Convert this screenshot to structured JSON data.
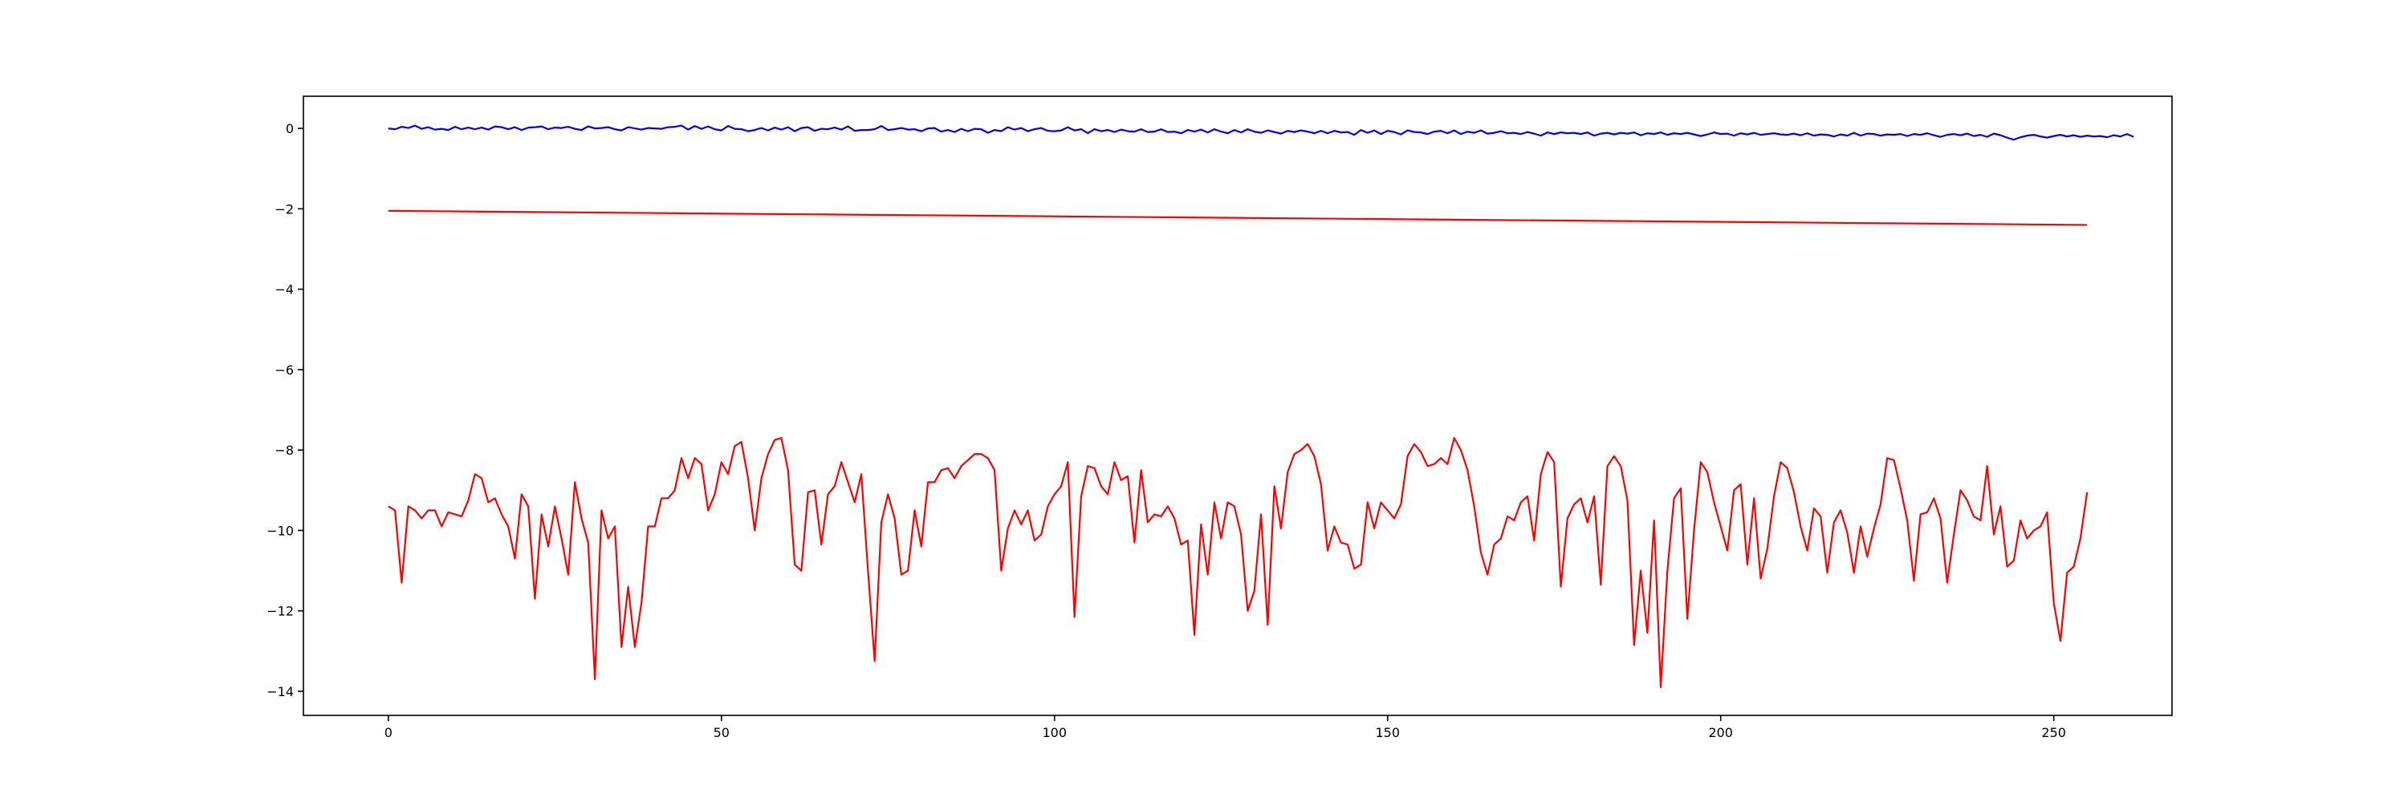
{
  "chart_data": {
    "type": "line",
    "title": "",
    "xlabel": "",
    "ylabel": "",
    "xlim": [
      -12.75,
      267.75
    ],
    "ylim": [
      -14.6,
      0.8
    ],
    "x_ticks": [
      0,
      50,
      100,
      150,
      200,
      250
    ],
    "x_tick_labels": [
      "0",
      "50",
      "100",
      "150",
      "200",
      "250"
    ],
    "y_ticks": [
      0,
      -2,
      -4,
      -6,
      -8,
      -10,
      -12,
      -14
    ],
    "y_tick_labels": [
      "0",
      "−2",
      "−4",
      "−6",
      "−8",
      "−10",
      "−12",
      "−14"
    ],
    "grid": false,
    "legend": "none",
    "series": [
      {
        "color": "#0000ff",
        "x_start": 0,
        "x_step": 1,
        "values": [
          0,
          -0.02,
          0.04,
          0.01,
          0.07,
          -0.01,
          0.03,
          -0.03,
          -0.01,
          -0.04,
          0.04,
          -0.02,
          0.02,
          -0.02,
          0.02,
          -0.03,
          0.05,
          0.03,
          -0.02,
          0.03,
          -0.04,
          0.02,
          0.03,
          0.05,
          -0.02,
          0.02,
          0.01,
          0.04,
          -0.01,
          -0.04,
          0.05,
          0,
          0.01,
          0.03,
          -0.02,
          -0.05,
          0.03,
          0,
          -0.03,
          0.01,
          0,
          -0.01,
          0.03,
          0.04,
          0.07,
          -0.03,
          0.06,
          -0.01,
          0.05,
          -0.02,
          -0.05,
          0.06,
          -0.01,
          -0.02,
          -0.07,
          -0.04,
          0.01,
          -0.05,
          0.02,
          -0.03,
          0.03,
          -0.07,
          0.01,
          0.03,
          -0.06,
          -0.01,
          -0.02,
          0.02,
          -0.03,
          0.05,
          -0.06,
          -0.04,
          -0.04,
          -0.02,
          0.06,
          -0.04,
          -0.02,
          0.01,
          -0.03,
          -0.02,
          -0.07,
          0,
          0.01,
          -0.08,
          -0.04,
          -0.09,
          -0.01,
          -0.07,
          -0.01,
          -0.02,
          -0.11,
          -0.04,
          -0.07,
          0.03,
          -0.03,
          0.01,
          -0.07,
          -0.02,
          0.01,
          -0.06,
          -0.07,
          -0.05,
          0.03,
          -0.05,
          -0.02,
          -0.12,
          -0.02,
          -0.07,
          -0.04,
          -0.09,
          -0.03,
          -0.07,
          -0.08,
          -0.02,
          -0.09,
          -0.08,
          -0.02,
          -0.09,
          -0.08,
          -0.12,
          -0.04,
          -0.08,
          -0.03,
          -0.1,
          -0.02,
          -0.08,
          -0.12,
          -0.04,
          -0.1,
          -0.02,
          -0.08,
          -0.11,
          -0.05,
          -0.09,
          -0.13,
          -0.06,
          -0.09,
          -0.05,
          -0.08,
          -0.12,
          -0.06,
          -0.12,
          -0.06,
          -0.1,
          -0.09,
          -0.16,
          -0.04,
          -0.11,
          -0.05,
          -0.14,
          -0.06,
          -0.09,
          -0.15,
          -0.05,
          -0.09,
          -0.1,
          -0.14,
          -0.08,
          -0.06,
          -0.12,
          -0.05,
          -0.14,
          -0.08,
          -0.11,
          -0.05,
          -0.13,
          -0.11,
          -0.07,
          -0.12,
          -0.11,
          -0.14,
          -0.09,
          -0.13,
          -0.18,
          -0.1,
          -0.14,
          -0.1,
          -0.12,
          -0.11,
          -0.14,
          -0.1,
          -0.18,
          -0.13,
          -0.11,
          -0.15,
          -0.11,
          -0.13,
          -0.1,
          -0.17,
          -0.12,
          -0.14,
          -0.1,
          -0.16,
          -0.12,
          -0.14,
          -0.11,
          -0.15,
          -0.19,
          -0.15,
          -0.1,
          -0.14,
          -0.13,
          -0.18,
          -0.12,
          -0.15,
          -0.11,
          -0.16,
          -0.14,
          -0.12,
          -0.15,
          -0.16,
          -0.13,
          -0.17,
          -0.12,
          -0.18,
          -0.15,
          -0.16,
          -0.2,
          -0.15,
          -0.18,
          -0.11,
          -0.18,
          -0.13,
          -0.14,
          -0.18,
          -0.15,
          -0.16,
          -0.14,
          -0.19,
          -0.14,
          -0.16,
          -0.12,
          -0.17,
          -0.21,
          -0.16,
          -0.14,
          -0.17,
          -0.13,
          -0.19,
          -0.16,
          -0.21,
          -0.13,
          -0.17,
          -0.23,
          -0.28,
          -0.22,
          -0.18,
          -0.16,
          -0.2,
          -0.23,
          -0.19,
          -0.16,
          -0.2,
          -0.17,
          -0.21,
          -0.18,
          -0.2,
          -0.19,
          -0.22,
          -0.17,
          -0.2,
          -0.14,
          -0.21
        ]
      },
      {
        "color": "#ff0000",
        "x_start": 0,
        "x_step": 1,
        "values": [
          -2.05,
          -2.4
        ]
      },
      {
        "color": "#ff0000",
        "x_start": 0,
        "x_step": 1,
        "values": [
          -9.4,
          -9.5,
          -11.3,
          -9.4,
          -9.5,
          -9.7,
          -9.5,
          -9.5,
          -9.9,
          -9.55,
          -9.6,
          -9.65,
          -9.25,
          -8.6,
          -8.7,
          -9.3,
          -9.2,
          -9.6,
          -9.9,
          -10.7,
          -9.1,
          -9.4,
          -11.7,
          -9.6,
          -10.4,
          -9.4,
          -10.2,
          -11.1,
          -8.8,
          -9.7,
          -10.3,
          -13.7,
          -9.5,
          -10.2,
          -9.9,
          -12.9,
          -11.4,
          -12.9,
          -11.8,
          -9.9,
          -9.9,
          -9.2,
          -9.2,
          -9.0,
          -8.2,
          -8.7,
          -8.2,
          -8.35,
          -9.5,
          -9.1,
          -8.3,
          -8.6,
          -7.9,
          -7.8,
          -8.7,
          -10.0,
          -8.7,
          -8.1,
          -7.75,
          -7.7,
          -8.5,
          -10.85,
          -11.0,
          -9.05,
          -9.0,
          -10.35,
          -9.1,
          -8.9,
          -8.3,
          -8.8,
          -9.3,
          -8.6,
          -11.0,
          -13.25,
          -9.8,
          -9.1,
          -9.7,
          -11.1,
          -11.0,
          -9.5,
          -10.4,
          -8.8,
          -8.8,
          -8.5,
          -8.45,
          -8.7,
          -8.4,
          -8.25,
          -8.1,
          -8.1,
          -8.2,
          -8.5,
          -11.0,
          -9.95,
          -9.5,
          -9.85,
          -9.5,
          -10.25,
          -10.1,
          -9.4,
          -9.1,
          -8.9,
          -8.3,
          -12.15,
          -9.15,
          -8.4,
          -8.45,
          -8.9,
          -9.1,
          -8.3,
          -8.75,
          -8.65,
          -10.3,
          -8.5,
          -9.8,
          -9.6,
          -9.65,
          -9.4,
          -9.7,
          -10.35,
          -10.25,
          -12.6,
          -9.85,
          -11.1,
          -9.3,
          -10.2,
          -9.3,
          -9.4,
          -10.1,
          -12.0,
          -11.5,
          -9.6,
          -12.35,
          -8.9,
          -9.95,
          -8.55,
          -8.1,
          -8.0,
          -7.85,
          -8.15,
          -8.85,
          -10.5,
          -9.9,
          -10.3,
          -10.35,
          -10.95,
          -10.85,
          -9.3,
          -9.95,
          -9.3,
          -9.5,
          -9.7,
          -9.35,
          -8.15,
          -7.85,
          -8.05,
          -8.4,
          -8.35,
          -8.2,
          -8.35,
          -7.7,
          -8.0,
          -8.5,
          -9.4,
          -10.55,
          -11.1,
          -10.35,
          -10.2,
          -9.65,
          -9.75,
          -9.3,
          -9.15,
          -10.25,
          -8.6,
          -8.05,
          -8.3,
          -11.4,
          -9.7,
          -9.35,
          -9.2,
          -9.8,
          -9.15,
          -11.35,
          -8.4,
          -8.15,
          -8.4,
          -9.25,
          -12.85,
          -11.0,
          -12.55,
          -9.75,
          -13.9,
          -11.0,
          -9.2,
          -8.95,
          -12.2,
          -10.0,
          -8.3,
          -8.55,
          -9.3,
          -9.9,
          -10.5,
          -9.0,
          -8.85,
          -10.85,
          -9.2,
          -11.2,
          -10.45,
          -9.15,
          -8.3,
          -8.45,
          -9.05,
          -9.9,
          -10.5,
          -9.45,
          -9.65,
          -11.05,
          -9.8,
          -9.5,
          -10.05,
          -11.05,
          -9.9,
          -10.65,
          -9.95,
          -9.35,
          -8.2,
          -8.25,
          -8.95,
          -9.75,
          -11.25,
          -9.6,
          -9.55,
          -9.2,
          -9.7,
          -11.3,
          -10.1,
          -9.0,
          -9.25,
          -9.65,
          -9.75,
          -8.4,
          -10.1,
          -9.4,
          -10.9,
          -10.75,
          -9.75,
          -10.2,
          -10.0,
          -9.9,
          -9.55,
          -11.8,
          -12.75,
          -11.05,
          -10.9,
          -10.2,
          -9.05
        ]
      }
    ]
  }
}
